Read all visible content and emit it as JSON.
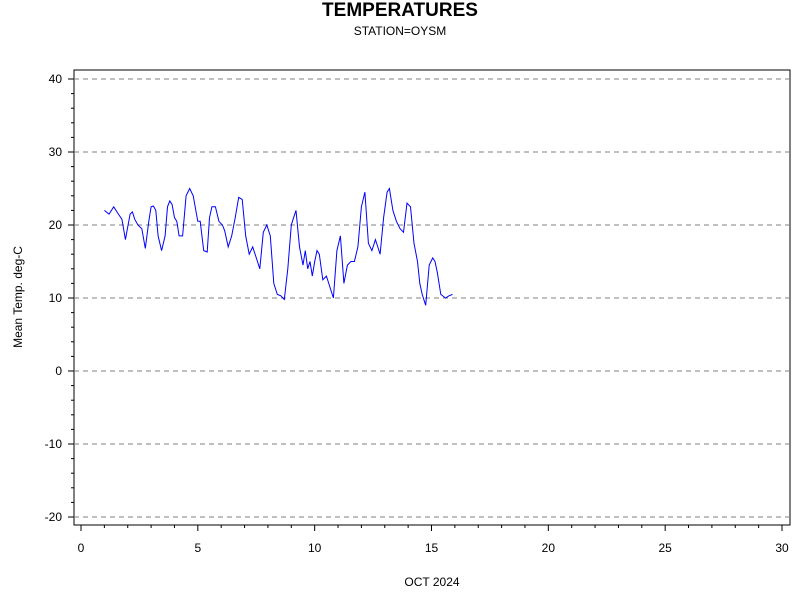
{
  "chart_data": {
    "type": "line",
    "title": "TEMPERATURES",
    "subtitle": "STATION=OYSM",
    "xlabel": "OCT 2024",
    "ylabel": "Mean Temp. deg-C",
    "xlim": [
      0,
      30
    ],
    "ylim": [
      -20,
      40
    ],
    "xticks": [
      0,
      5,
      10,
      15,
      20,
      25,
      30
    ],
    "yticks": [
      -20,
      -10,
      0,
      10,
      20,
      30,
      40
    ],
    "grid": "horizontal dashed",
    "line_color": "#0000ff",
    "series": [
      {
        "x": [
          1.0,
          1.2,
          1.4,
          1.6,
          1.75,
          1.9,
          2.1,
          2.2,
          2.3,
          2.4,
          2.5,
          2.6,
          2.75,
          2.9,
          3.0,
          3.1,
          3.2,
          3.3,
          3.45,
          3.6,
          3.7,
          3.8,
          3.9,
          4.0,
          4.1,
          4.2,
          4.35,
          4.5,
          4.65,
          4.8,
          5.0,
          5.1,
          5.25,
          5.4,
          5.5,
          5.6,
          5.75,
          5.9,
          6.05,
          6.15,
          6.3,
          6.45,
          6.6,
          6.75,
          6.9,
          7.05,
          7.2,
          7.35,
          7.5,
          7.65,
          7.8,
          7.95,
          8.1,
          8.25,
          8.4,
          8.55,
          8.7,
          8.85,
          9.0,
          9.1,
          9.2,
          9.35,
          9.5,
          9.6,
          9.7,
          9.8,
          9.9,
          10.0,
          10.1,
          10.2,
          10.35,
          10.5,
          10.65,
          10.8,
          10.95,
          11.1,
          11.25,
          11.4,
          11.55,
          11.7,
          11.85,
          12.0,
          12.15,
          12.3,
          12.45,
          12.6,
          12.7,
          12.8,
          12.95,
          13.1,
          13.2,
          13.35,
          13.5,
          13.65,
          13.8,
          13.95,
          14.1,
          14.25,
          14.4,
          14.5,
          14.6,
          14.75,
          14.9,
          15.05,
          15.15,
          15.25,
          15.4,
          15.6,
          15.75,
          15.9
        ],
        "y": [
          22.0,
          21.5,
          22.5,
          21.5,
          20.8,
          18.0,
          21.5,
          21.8,
          20.8,
          20.2,
          19.8,
          19.5,
          16.8,
          20.5,
          22.5,
          22.6,
          22.0,
          18.5,
          16.5,
          18.5,
          22.5,
          23.3,
          22.8,
          21.0,
          20.5,
          18.5,
          18.5,
          24.0,
          25.0,
          24.0,
          20.5,
          20.5,
          16.5,
          16.3,
          21.0,
          22.5,
          22.5,
          20.5,
          20.0,
          19.2,
          17.0,
          18.5,
          21.0,
          23.8,
          23.5,
          18.5,
          16.0,
          17.0,
          15.5,
          14.0,
          19.0,
          20.0,
          18.5,
          12.0,
          10.5,
          10.3,
          9.8,
          14.0,
          20.0,
          21.0,
          22.0,
          17.0,
          14.5,
          16.5,
          14.0,
          15.0,
          13.0,
          15.0,
          16.5,
          16.0,
          12.5,
          13.0,
          11.5,
          10.0,
          16.5,
          18.5,
          12.0,
          14.5,
          15.0,
          15.0,
          17.0,
          22.5,
          24.5,
          17.5,
          16.5,
          18.0,
          17.0,
          16.0,
          21.0,
          24.5,
          25.0,
          22.0,
          20.5,
          19.5,
          19.0,
          23.0,
          22.5,
          17.5,
          15.0,
          12.0,
          10.5,
          9.0,
          14.5,
          15.5,
          15.0,
          13.5,
          10.5,
          10.0,
          10.3,
          10.5
        ]
      }
    ]
  }
}
